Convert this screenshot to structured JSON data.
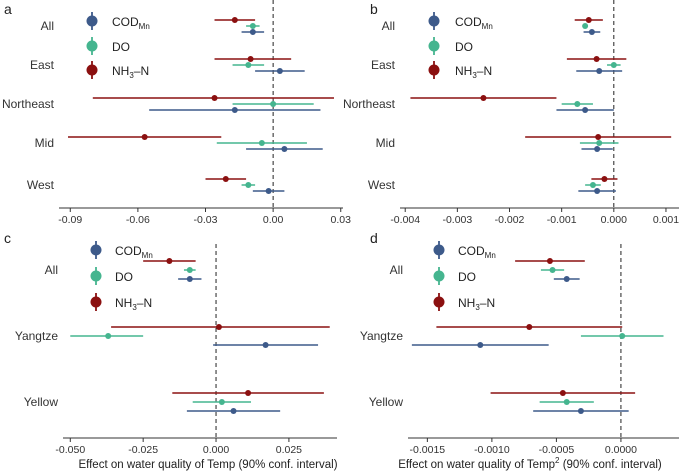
{
  "colors": {
    "COD": "#3d5a8a",
    "DO": "#45b58f",
    "NH3": "#8b1010"
  },
  "legend": {
    "cod": {
      "main": "COD",
      "sub": "Mn"
    },
    "do": "DO",
    "nh3": {
      "a": "NH",
      "sub": "3",
      "b": "–N"
    }
  },
  "xlabels": {
    "left": "Effect on water quality of Temp (90% conf. interval)",
    "right_a": "Effect on water quality of Temp",
    "right_sup": "2",
    "right_b": " (90% conf. interval)"
  },
  "chart_data": [
    {
      "type": "forest",
      "panel": "a",
      "categories": [
        "All",
        "East",
        "Northeast",
        "Mid",
        "West"
      ],
      "xlim": [
        -0.095,
        0.031
      ],
      "xticks": [
        -0.09,
        -0.06,
        -0.03,
        0,
        0.03
      ],
      "xtick_labels": [
        "-0.09",
        "-0.06",
        "-0.03",
        "0.00",
        "0.03"
      ],
      "series": [
        {
          "name": "NH3-N",
          "key": "NH3",
          "est": [
            -0.017,
            -0.01,
            -0.026,
            -0.057,
            -0.021
          ],
          "lo": [
            -0.026,
            -0.026,
            -0.08,
            -0.091,
            -0.03
          ],
          "hi": [
            -0.008,
            0.008,
            0.027,
            -0.023,
            -0.012
          ]
        },
        {
          "name": "DO",
          "key": "DO",
          "est": [
            -0.009,
            -0.011,
            0.0,
            -0.005,
            -0.011
          ],
          "lo": [
            -0.012,
            -0.018,
            -0.018,
            -0.025,
            -0.014
          ],
          "hi": [
            -0.006,
            -0.004,
            0.018,
            0.015,
            -0.008
          ]
        },
        {
          "name": "CODMn",
          "key": "COD",
          "est": [
            -0.009,
            0.003,
            -0.017,
            0.005,
            -0.002
          ],
          "lo": [
            -0.014,
            -0.008,
            -0.055,
            -0.012,
            -0.009
          ],
          "hi": [
            -0.004,
            0.014,
            0.021,
            0.022,
            0.005
          ]
        }
      ]
    },
    {
      "type": "forest",
      "panel": "b",
      "categories": [
        "All",
        "East",
        "Northeast",
        "Mid",
        "West"
      ],
      "xlim": [
        -0.0041,
        0.00125
      ],
      "xticks": [
        -0.004,
        -0.003,
        -0.002,
        -0.001,
        0,
        0.001
      ],
      "xtick_labels": [
        "-0.004",
        "-0.003",
        "-0.002",
        "-0.001",
        "0.000",
        "0.001"
      ],
      "series": [
        {
          "name": "NH3-N",
          "key": "NH3",
          "est": [
            -0.00048,
            -0.00033,
            -0.0025,
            -0.0003,
            -0.00018
          ],
          "lo": [
            -0.00075,
            -0.0009,
            -0.0039,
            -0.0017,
            -0.00043
          ],
          "hi": [
            -0.00021,
            0.00024,
            -0.0011,
            0.0011,
            7e-05
          ]
        },
        {
          "name": "DO",
          "key": "DO",
          "est": [
            -0.00055,
            0.0,
            -0.0007,
            -0.00028,
            -0.0004
          ],
          "lo": [
            -0.0006,
            -0.00013,
            -0.001,
            -0.00065,
            -0.00055
          ],
          "hi": [
            -0.0005,
            0.00013,
            -0.0004,
            9e-05,
            -0.00025
          ]
        },
        {
          "name": "CODMn",
          "key": "COD",
          "est": [
            -0.00042,
            -0.00028,
            -0.00055,
            -0.00032,
            -0.00032
          ],
          "lo": [
            -0.00058,
            -0.00072,
            -0.0011,
            -0.00062,
            -0.00068
          ],
          "hi": [
            -0.00026,
            0.00016,
            0.0,
            -2e-05,
            4e-05
          ]
        }
      ]
    },
    {
      "type": "forest",
      "panel": "c",
      "categories": [
        "All",
        "Yangtze",
        "Yellow"
      ],
      "xlim": [
        -0.0525,
        0.0415
      ],
      "xticks": [
        -0.05,
        -0.025,
        0,
        0.025
      ],
      "xtick_labels": [
        "-0.050",
        "-0.025",
        "0.000",
        "0.025"
      ],
      "series": [
        {
          "name": "NH3-N",
          "key": "NH3",
          "est": [
            -0.016,
            0.001,
            0.011
          ],
          "lo": [
            -0.025,
            -0.036,
            -0.015
          ],
          "hi": [
            -0.007,
            0.039,
            0.037
          ]
        },
        {
          "name": "DO",
          "key": "DO",
          "est": [
            -0.009,
            -0.037,
            0.002
          ],
          "lo": [
            -0.011,
            -0.05,
            -0.008
          ],
          "hi": [
            -0.007,
            -0.025,
            0.012
          ]
        },
        {
          "name": "CODMn",
          "key": "COD",
          "est": [
            -0.009,
            0.017,
            0.006
          ],
          "lo": [
            -0.013,
            -0.001,
            -0.01
          ],
          "hi": [
            -0.005,
            0.035,
            0.022
          ]
        }
      ]
    },
    {
      "type": "forest",
      "panel": "d",
      "categories": [
        "All",
        "Yangtze",
        "Yellow"
      ],
      "xlim": [
        -0.00165,
        0.00045
      ],
      "xticks": [
        -0.0015,
        -0.001,
        -0.0005,
        0
      ],
      "xtick_labels": [
        "-0.0015",
        "-0.0010",
        "-0.0005",
        "0.0000"
      ],
      "series": [
        {
          "name": "NH3-N",
          "key": "NH3",
          "est": [
            -0.00055,
            -0.00071,
            -0.00045
          ],
          "lo": [
            -0.00082,
            -0.00143,
            -0.00101
          ],
          "hi": [
            -0.00028,
            1e-05,
            0.00011
          ]
        },
        {
          "name": "DO",
          "key": "DO",
          "est": [
            -0.00053,
            1e-05,
            -0.00042
          ],
          "lo": [
            -0.00062,
            -0.00031,
            -0.00063
          ],
          "hi": [
            -0.00044,
            0.00033,
            -0.00021
          ]
        },
        {
          "name": "CODMn",
          "key": "COD",
          "est": [
            -0.00042,
            -0.00109,
            -0.00031
          ],
          "lo": [
            -0.00052,
            -0.00162,
            -0.00068
          ],
          "hi": [
            -0.00032,
            -0.00056,
            6e-05
          ]
        }
      ]
    }
  ]
}
